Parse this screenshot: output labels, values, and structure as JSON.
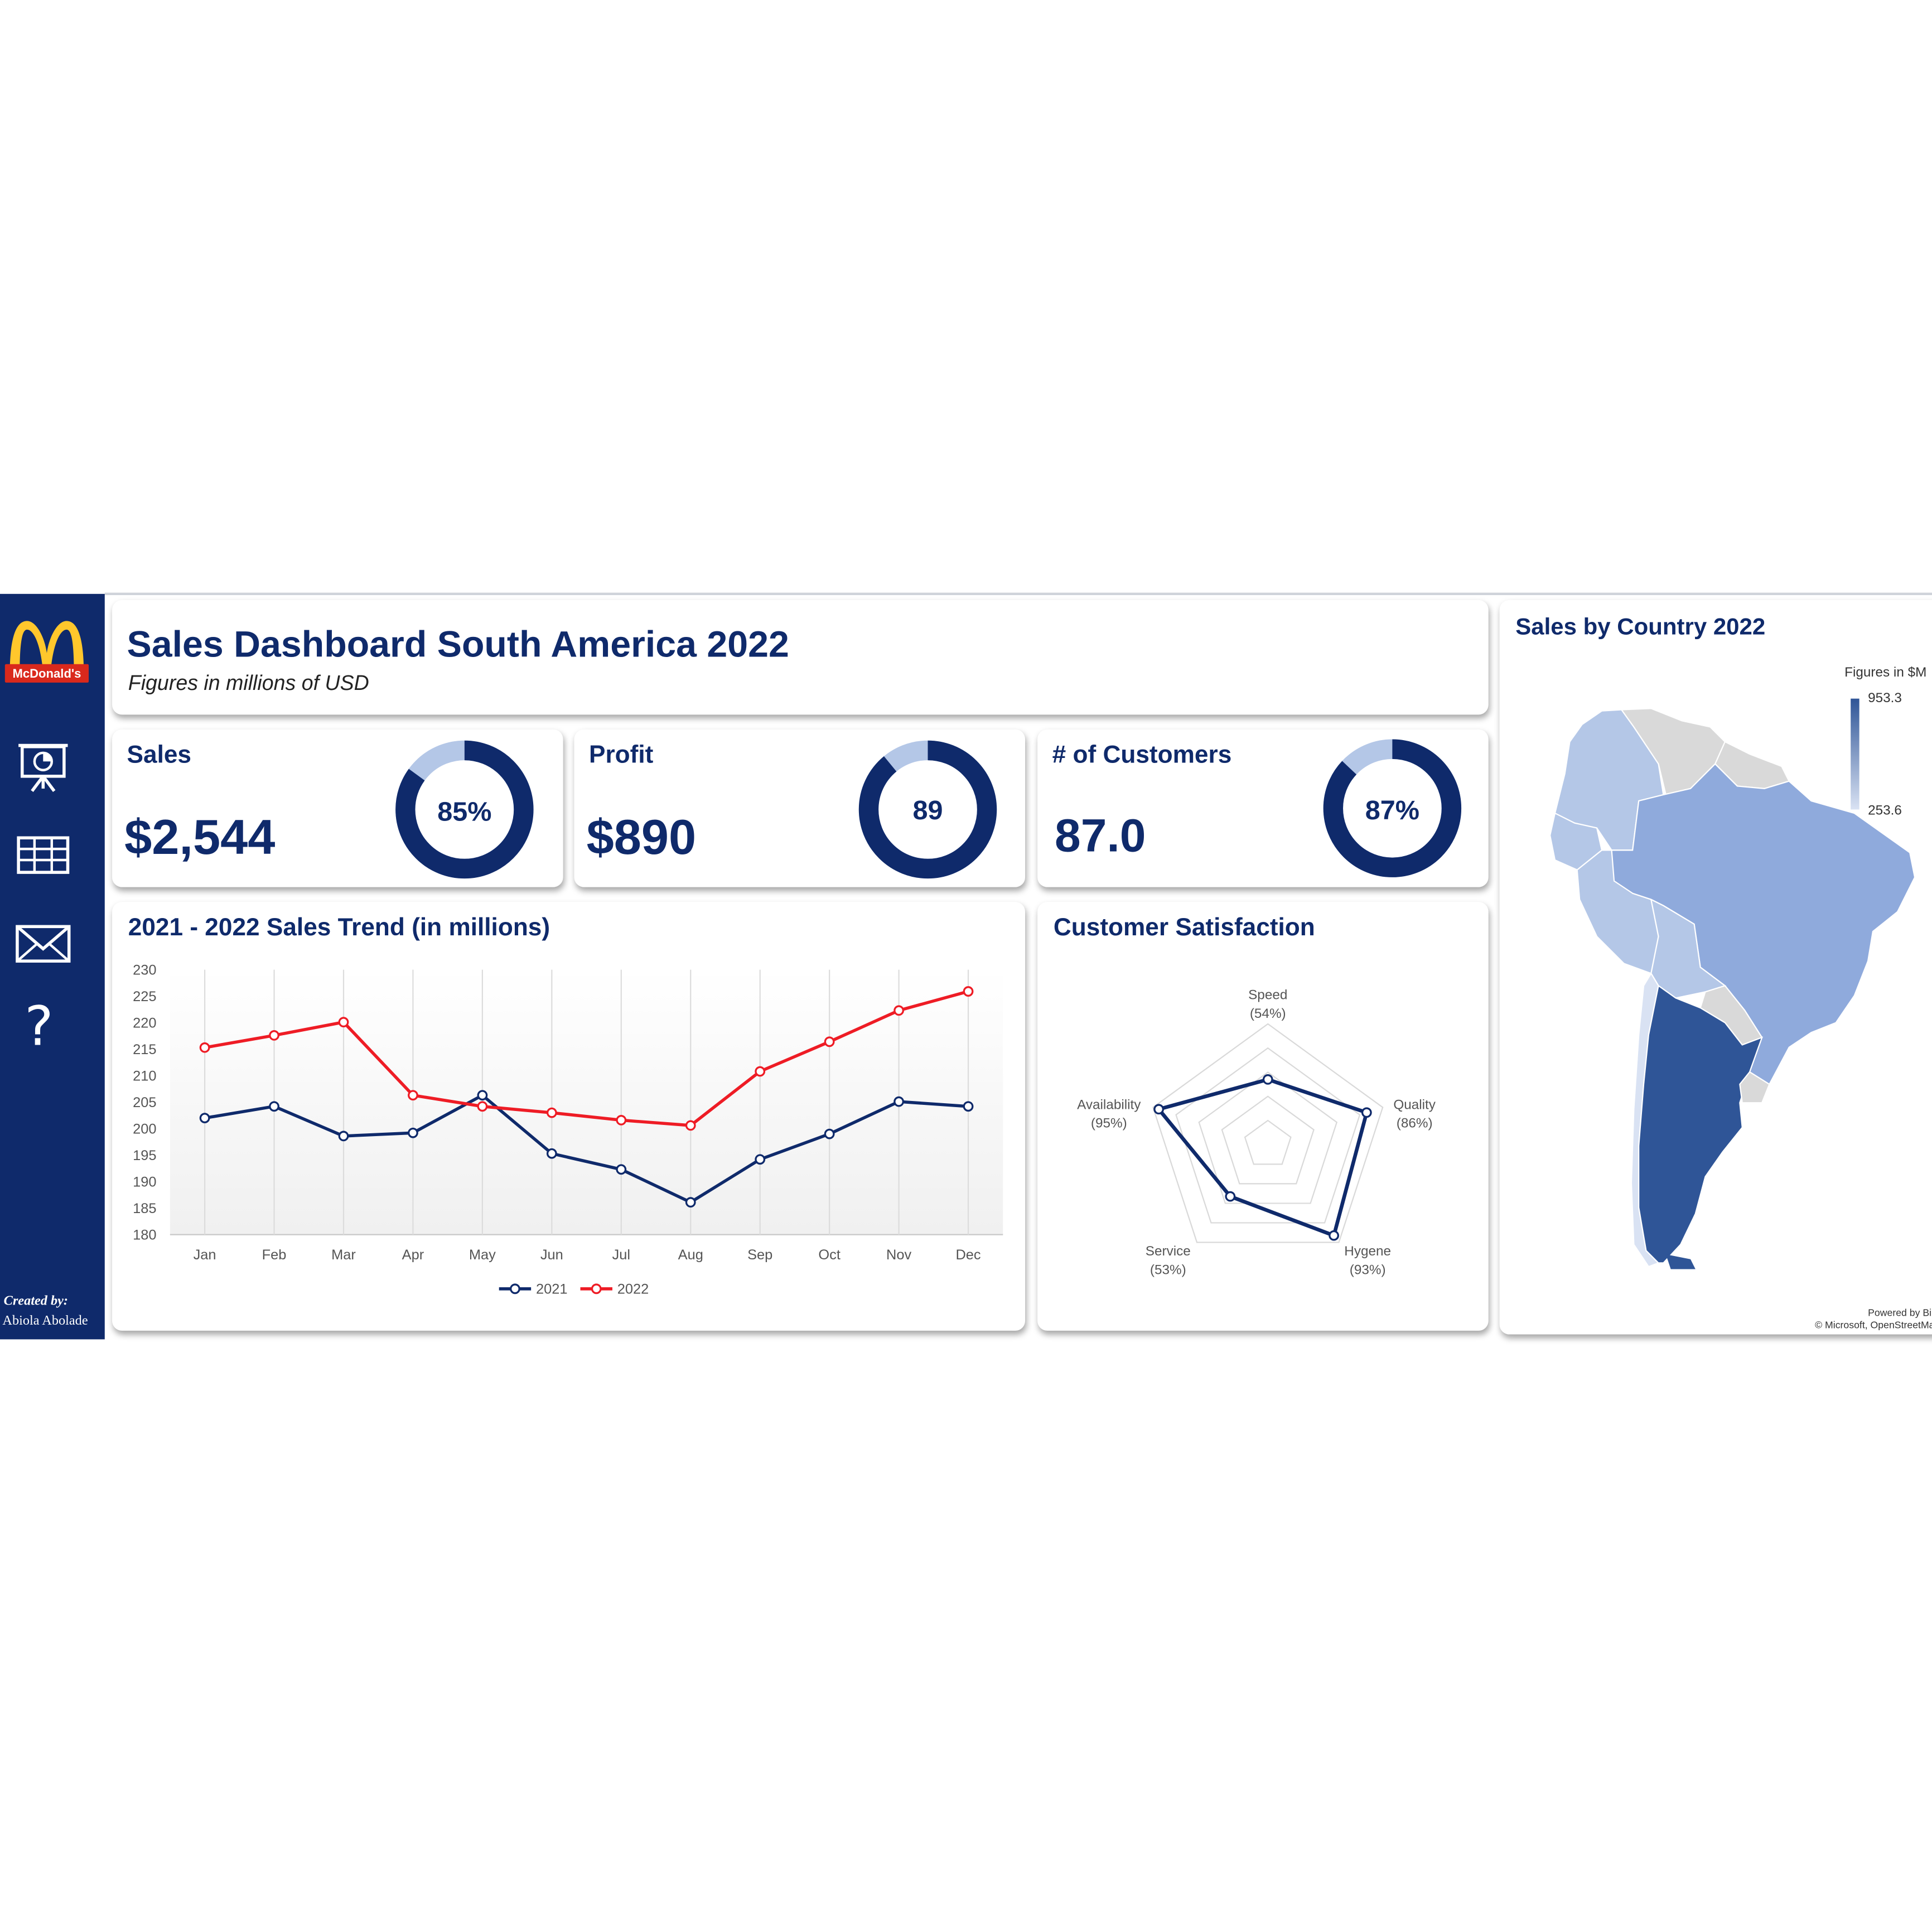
{
  "brand": {
    "name": "McDonald's",
    "logo_icon": "mcdonalds-logo-icon"
  },
  "sidebar": {
    "items": [
      {
        "name": "presentation-icon"
      },
      {
        "name": "table-icon"
      },
      {
        "name": "mail-icon"
      },
      {
        "name": "help-icon",
        "glyph": "?"
      }
    ],
    "credit_label": "Created by:",
    "credit_name": "Abiola Abolade"
  },
  "header": {
    "title": "Sales Dashboard South America 2022",
    "subtitle": "Figures in millions of USD"
  },
  "kpis": [
    {
      "title": "Sales",
      "value": "$2,544",
      "ring_label": "85%",
      "ring_fraction": 0.85
    },
    {
      "title": "Profit",
      "value": "$890",
      "ring_label": "89",
      "ring_fraction": 0.89
    },
    {
      "title": "# of Customers",
      "value": "87.0",
      "ring_label": "87%",
      "ring_fraction": 0.87
    }
  ],
  "trend": {
    "title": "2021 - 2022 Sales Trend (in millions)",
    "legend": [
      "2021",
      "2022"
    ]
  },
  "satisfaction": {
    "title": "Customer Satisfaction",
    "labels": [
      {
        "name": "Speed",
        "pct": "(54%)"
      },
      {
        "name": "Quality",
        "pct": "(86%)"
      },
      {
        "name": "Hygene",
        "pct": "(93%)"
      },
      {
        "name": "Service",
        "pct": "(53%)"
      },
      {
        "name": "Availability",
        "pct": "(95%)"
      }
    ]
  },
  "map": {
    "title": "Sales by Country 2022",
    "legend_title": "Figures in $M",
    "legend_max": "953.3",
    "legend_min": "253.6",
    "attribution_1": "Powered by Bing",
    "attribution_2": "© Microsoft, OpenStreetMap"
  },
  "colors": {
    "navy": "#0f2a6b",
    "red": "#ee1c25",
    "ring_light": "#b4c7e7",
    "map_dark": "#2f5597",
    "map_mid": "#8faadc",
    "map_light": "#b4c7e7",
    "map_lightest": "#d9e2f3",
    "map_none": "#d9d9d9"
  },
  "chart_data": [
    {
      "type": "line",
      "title": "2021 - 2022 Sales Trend (in millions)",
      "categories": [
        "Jan",
        "Feb",
        "Mar",
        "Apr",
        "May",
        "Jun",
        "Jul",
        "Aug",
        "Sep",
        "Oct",
        "Nov",
        "Dec"
      ],
      "series": [
        {
          "name": "2021",
          "values": [
            202,
            204.2,
            198.6,
            199.2,
            206.3,
            195.3,
            192.3,
            186.1,
            194.2,
            199,
            205.1,
            204.2
          ]
        },
        {
          "name": "2022",
          "values": [
            215.3,
            217.6,
            220.1,
            206.3,
            204.2,
            203,
            201.6,
            200.6,
            210.8,
            216.4,
            222.3,
            225.9
          ]
        }
      ],
      "ylim": [
        180,
        230
      ],
      "yticks": [
        180,
        185,
        190,
        195,
        200,
        205,
        210,
        215,
        220,
        225,
        230
      ],
      "grid": "vertical",
      "legend": "bottom"
    },
    {
      "type": "radar",
      "title": "Customer Satisfaction",
      "categories": [
        "Speed",
        "Quality",
        "Hygene",
        "Service",
        "Availability"
      ],
      "values": [
        54,
        86,
        93,
        53,
        95
      ],
      "range": [
        0,
        100
      ]
    }
  ]
}
